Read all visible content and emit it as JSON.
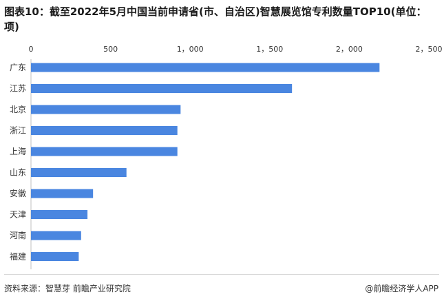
{
  "title": "图表10：截至2022年5月中国当前申请省(市、自治区)智慧展览馆专利数量TOP10(单位：项)",
  "footer": {
    "source": "资料来源：智慧芽 前瞻产业研究院",
    "brand": "@前瞻经济学人APP"
  },
  "colors": {
    "bar": "#4a86e0",
    "grid": "#d9d9d9"
  },
  "chart_data": {
    "type": "bar",
    "orientation": "horizontal",
    "categories": [
      "广东",
      "江苏",
      "北京",
      "浙江",
      "上海",
      "山东",
      "安徽",
      "天津",
      "河南",
      "福建"
    ],
    "values": [
      2190,
      1640,
      940,
      920,
      920,
      600,
      390,
      355,
      315,
      300
    ],
    "xlim": [
      0,
      2500
    ],
    "xticks": [
      0,
      500,
      1000,
      1500,
      2000,
      2500
    ],
    "xtick_labels": [
      "0",
      "500",
      "1，000",
      "1，500",
      "2，000",
      "2，500"
    ],
    "axis_position": "top",
    "grid": false,
    "legend": "none"
  }
}
